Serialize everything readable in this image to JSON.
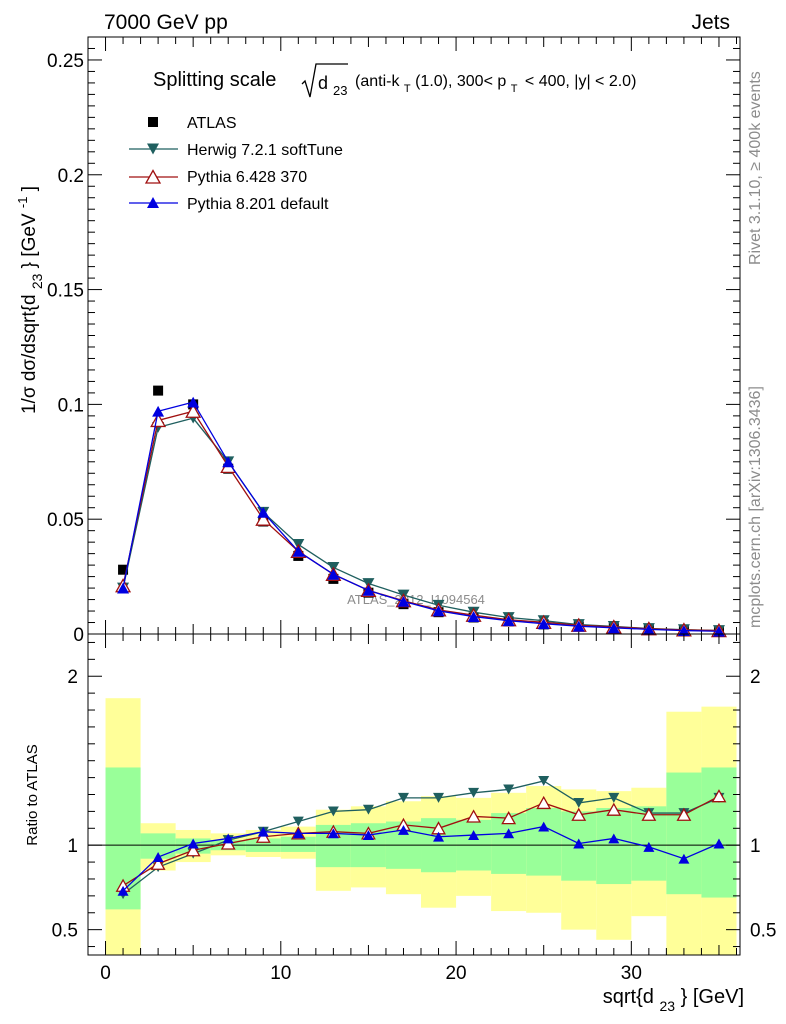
{
  "header": {
    "left": "7000 GeV pp",
    "right": "Jets"
  },
  "side": {
    "rivet": "Rivet 3.1.10, ≥ 400k events",
    "mcplots": "mcplots.cern.ch [arXiv:1306.3436]"
  },
  "watermark": "ATLAS_2012_I1094564",
  "chart_data": [
    {
      "type": "line",
      "title_parts": {
        "main": "Splitting scale",
        "radicand": "d",
        "radicand_sub": "23",
        "cut_a": "(anti-k",
        "cut_a_sub": "T",
        "cut_b": "(1.0), 300< p",
        "cut_b_sub": "T",
        "cut_c": "< 400, |y| < 2.0)"
      },
      "ylabel_parts": {
        "a": "1/σ dσ/dsqrt{d",
        "a_sub": "23",
        "b": "} [GeV",
        "b_sup": "-1",
        "c": "]"
      },
      "xlabel_parts": {
        "a": "sqrt{d",
        "a_sub": "23",
        "b": "} [GeV]"
      },
      "xlim": [
        -1,
        36.2
      ],
      "ylim": [
        0,
        0.26
      ],
      "x_ticks": [
        0,
        10,
        20,
        30
      ],
      "x_tick_labels": [
        "0",
        "10",
        "20",
        "30"
      ],
      "y_ticks": [
        0,
        0.05,
        0.1,
        0.15,
        0.2,
        0.25
      ],
      "y_tick_labels": [
        "0",
        "0.05",
        "0.1",
        "0.15",
        "0.2",
        "0.25"
      ],
      "legend_position": "top-left",
      "x": [
        1,
        3,
        5,
        7,
        9,
        11,
        13,
        15,
        17,
        19,
        21,
        23,
        25,
        27,
        29,
        31,
        33,
        35
      ],
      "series": [
        {
          "name": "ATLAS",
          "color": "#000000",
          "marker": "square",
          "line": false,
          "values": [
            0.028,
            0.106,
            0.1,
            0.072,
            0.049,
            0.034,
            0.024,
            0.018,
            0.013,
            0.0095,
            0.0072,
            0.0055,
            0.0042,
            0.0033,
            0.0026,
            0.002,
            0.0016,
            0.0012
          ]
        },
        {
          "name": "Herwig 7.2.1 softTune",
          "color": "#1f5f5f",
          "marker": "triangle-down",
          "line": true,
          "values": [
            0.02,
            0.09,
            0.094,
            0.075,
            0.053,
            0.039,
            0.029,
            0.022,
            0.017,
            0.0125,
            0.0095,
            0.0072,
            0.0058,
            0.0041,
            0.0033,
            0.0024,
            0.0019,
            0.0015
          ]
        },
        {
          "name": "Pythia 6.428 370",
          "color": "#a01010",
          "marker": "triangle-up-open",
          "line": true,
          "values": [
            0.021,
            0.093,
            0.097,
            0.073,
            0.05,
            0.036,
            0.026,
            0.019,
            0.0145,
            0.0105,
            0.0082,
            0.0062,
            0.0051,
            0.0038,
            0.0031,
            0.0023,
            0.0018,
            0.0015
          ]
        },
        {
          "name": "Pythia 8.201 default",
          "color": "#0000e0",
          "marker": "triangle-up",
          "line": true,
          "values": [
            0.02,
            0.097,
            0.101,
            0.075,
            0.053,
            0.036,
            0.026,
            0.019,
            0.0142,
            0.0101,
            0.0076,
            0.0058,
            0.0045,
            0.0034,
            0.0027,
            0.002,
            0.0015,
            0.0012
          ]
        }
      ]
    },
    {
      "type": "line",
      "ylabel": "Ratio to ATLAS",
      "xlim": [
        -1,
        36.2
      ],
      "ylim": [
        0.35,
        2.25
      ],
      "y_ticks": [
        0.5,
        1,
        2
      ],
      "y_tick_labels": [
        "0.5",
        "1",
        "2"
      ],
      "reference_line": 1,
      "x": [
        1,
        3,
        5,
        7,
        9,
        11,
        13,
        15,
        17,
        19,
        21,
        23,
        25,
        27,
        29,
        31,
        33,
        35
      ],
      "bins": [
        [
          0,
          2
        ],
        [
          2,
          4
        ],
        [
          4,
          6
        ],
        [
          6,
          8
        ],
        [
          8,
          10
        ],
        [
          10,
          12
        ],
        [
          12,
          14
        ],
        [
          14,
          16
        ],
        [
          16,
          18
        ],
        [
          18,
          20
        ],
        [
          20,
          22
        ],
        [
          22,
          24
        ],
        [
          24,
          26
        ],
        [
          26,
          28
        ],
        [
          28,
          30
        ],
        [
          30,
          32
        ],
        [
          32,
          34
        ],
        [
          34,
          36
        ]
      ],
      "band_outer": [
        [
          0.35,
          1.87
        ],
        [
          0.85,
          1.13
        ],
        [
          0.9,
          1.09
        ],
        [
          0.94,
          1.07
        ],
        [
          0.93,
          1.09
        ],
        [
          0.92,
          1.11
        ],
        [
          0.73,
          1.21
        ],
        [
          0.75,
          1.23
        ],
        [
          0.71,
          1.26
        ],
        [
          0.63,
          1.29
        ],
        [
          0.7,
          1.28
        ],
        [
          0.61,
          1.31
        ],
        [
          0.6,
          1.35
        ],
        [
          0.5,
          1.33
        ],
        [
          0.44,
          1.32
        ],
        [
          0.58,
          1.34
        ],
        [
          0.35,
          1.79
        ],
        [
          0.35,
          1.82
        ]
      ],
      "band_inner": [
        [
          0.62,
          1.46
        ],
        [
          0.92,
          1.07
        ],
        [
          0.95,
          1.04
        ],
        [
          0.97,
          1.03
        ],
        [
          0.96,
          1.04
        ],
        [
          0.96,
          1.05
        ],
        [
          0.87,
          1.12
        ],
        [
          0.87,
          1.13
        ],
        [
          0.86,
          1.14
        ],
        [
          0.84,
          1.16
        ],
        [
          0.85,
          1.15
        ],
        [
          0.83,
          1.19
        ],
        [
          0.82,
          1.22
        ],
        [
          0.79,
          1.2
        ],
        [
          0.77,
          1.22
        ],
        [
          0.79,
          1.23
        ],
        [
          0.71,
          1.43
        ],
        [
          0.69,
          1.46
        ]
      ],
      "series": [
        {
          "name": "Herwig 7.2.1 softTune",
          "color": "#1f5f5f",
          "marker": "triangle-down",
          "values": [
            0.71,
            0.87,
            0.95,
            1.03,
            1.08,
            1.14,
            1.2,
            1.21,
            1.28,
            1.28,
            1.31,
            1.33,
            1.38,
            1.25,
            1.28,
            1.19,
            1.19,
            1.28
          ]
        },
        {
          "name": "Pythia 6.428 370",
          "color": "#a01010",
          "marker": "triangle-up-open",
          "values": [
            0.76,
            0.89,
            0.97,
            1.01,
            1.05,
            1.07,
            1.08,
            1.07,
            1.12,
            1.1,
            1.17,
            1.16,
            1.25,
            1.18,
            1.21,
            1.18,
            1.18,
            1.29
          ]
        },
        {
          "name": "Pythia 8.201 default",
          "color": "#0000e0",
          "marker": "triangle-up",
          "values": [
            0.73,
            0.93,
            1.01,
            1.04,
            1.08,
            1.07,
            1.07,
            1.06,
            1.09,
            1.05,
            1.06,
            1.07,
            1.11,
            1.01,
            1.04,
            0.99,
            0.92,
            1.01
          ]
        }
      ]
    }
  ]
}
